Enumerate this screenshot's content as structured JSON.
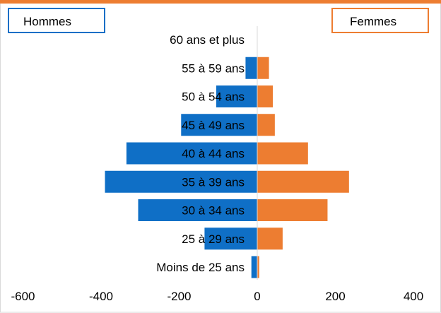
{
  "chart_data": {
    "type": "bar",
    "orientation": "horizontal",
    "layout": "population-pyramid",
    "categories": [
      "Moins de 25 ans",
      "25 à 29 ans",
      "30 à 34 ans",
      "35 à 39 ans",
      "40 à 44 ans",
      "45 à 49 ans",
      "50 à 54 ans",
      "55 à 59 ans",
      "60 ans et plus"
    ],
    "series": [
      {
        "name": "Hommes",
        "values": [
          -15,
          -135,
          -305,
          -390,
          -335,
          -195,
          -105,
          -30,
          0
        ],
        "color": "#0f6fc6"
      },
      {
        "name": "Femmes",
        "values": [
          5,
          65,
          180,
          235,
          130,
          45,
          40,
          30,
          0
        ],
        "color": "#ed7d31"
      }
    ],
    "xlim": [
      -600,
      400
    ],
    "xticks": [
      "-600",
      "-400",
      "-200",
      "0",
      "200",
      "400"
    ],
    "legend_placement": "top-left and top-right",
    "grid": false,
    "top_border_color": "#ed7d31",
    "axis_line_color": "#d9d9d9"
  }
}
